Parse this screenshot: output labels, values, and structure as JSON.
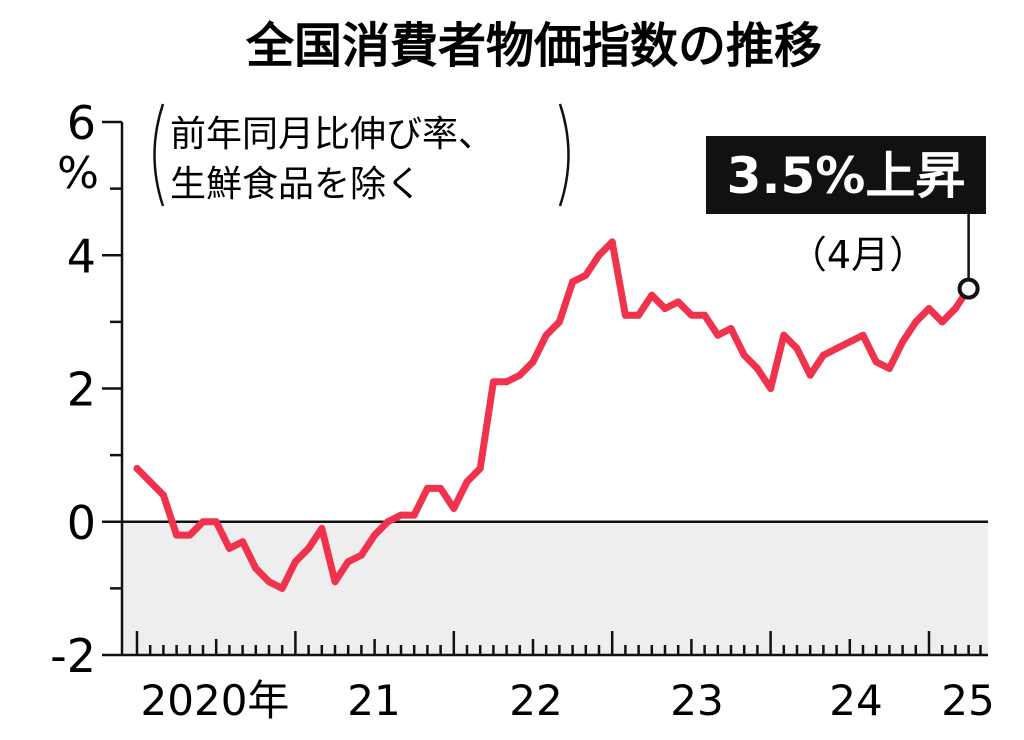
{
  "chart_data": {
    "type": "line",
    "title": "全国消費者物価指数の推移",
    "subtitle": [
      "前年同月比伸び率、",
      "生鮮食品を除く"
    ],
    "y_unit": "%",
    "ylim": [
      -2,
      6
    ],
    "y_ticks": [
      "6",
      "4",
      "2",
      "0",
      "-2"
    ],
    "x_ticks": [
      "2020年",
      "21",
      "22",
      "23",
      "24",
      "25"
    ],
    "grid": false,
    "negative_region_shaded": true,
    "colors": {
      "line": "#f0324c",
      "shade": "#eeeeee",
      "axis": "#111111",
      "callout_bg": "#111111",
      "callout_text": "#ffffff"
    },
    "callout": {
      "label": "3.5%上昇",
      "sublabel": "（4月）"
    },
    "series": [
      {
        "x": [
          "2020-01",
          "2020-02",
          "2020-03",
          "2020-04",
          "2020-05",
          "2020-06",
          "2020-07",
          "2020-08",
          "2020-09",
          "2020-10",
          "2020-11",
          "2020-12",
          "2021-01",
          "2021-02",
          "2021-03",
          "2021-04",
          "2021-05",
          "2021-06",
          "2021-07",
          "2021-08",
          "2021-09",
          "2021-10",
          "2021-11",
          "2021-12",
          "2022-01",
          "2022-02",
          "2022-03",
          "2022-04",
          "2022-05",
          "2022-06",
          "2022-07",
          "2022-08",
          "2022-09",
          "2022-10",
          "2022-11",
          "2022-12",
          "2023-01",
          "2023-02",
          "2023-03",
          "2023-04",
          "2023-05",
          "2023-06",
          "2023-07",
          "2023-08",
          "2023-09",
          "2023-10",
          "2023-11",
          "2023-12",
          "2024-01",
          "2024-02",
          "2024-03",
          "2024-04",
          "2024-05",
          "2024-06",
          "2024-07",
          "2024-08",
          "2024-09",
          "2024-10",
          "2024-11",
          "2024-12",
          "2025-01",
          "2025-02",
          "2025-03",
          "2025-04"
        ],
        "values": [
          0.8,
          0.6,
          0.4,
          -0.2,
          -0.2,
          0.0,
          0.0,
          -0.4,
          -0.3,
          -0.7,
          -0.9,
          -1.0,
          -0.6,
          -0.4,
          -0.1,
          -0.9,
          -0.6,
          -0.5,
          -0.2,
          0.0,
          0.1,
          0.1,
          0.5,
          0.5,
          0.2,
          0.6,
          0.8,
          2.1,
          2.1,
          2.2,
          2.4,
          2.8,
          3.0,
          3.6,
          3.7,
          4.0,
          4.2,
          3.1,
          3.1,
          3.4,
          3.2,
          3.3,
          3.1,
          3.1,
          2.8,
          2.9,
          2.5,
          2.3,
          2.0,
          2.8,
          2.6,
          2.2,
          2.5,
          2.6,
          2.7,
          2.8,
          2.4,
          2.3,
          2.7,
          3.0,
          3.2,
          3.0,
          3.2,
          3.5
        ]
      }
    ]
  }
}
